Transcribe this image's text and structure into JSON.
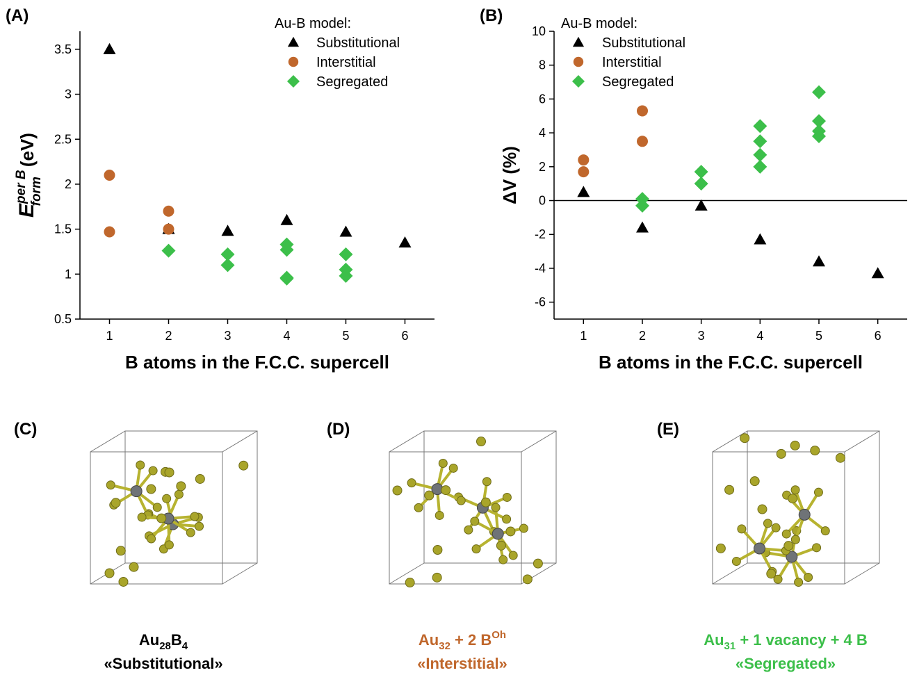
{
  "chart_data": [
    {
      "type": "scatter",
      "panel": "(A)",
      "legend_title": "Au-B model:",
      "legend": "upper right",
      "xlabel": "B atoms in the F.C.C. supercell",
      "ylabel": {
        "main": "E",
        "sup": "per B",
        "sub": "form",
        "unit": "(eV)"
      },
      "xlim": [
        0.5,
        6.5
      ],
      "ylim": [
        0.5,
        3.7
      ],
      "xticks": [
        1,
        2,
        3,
        4,
        5,
        6
      ],
      "yticks": [
        0.5,
        1,
        1.5,
        2,
        2.5,
        3,
        3.5
      ],
      "series": [
        {
          "name": "Substitutional",
          "color": "#000000",
          "marker": "triangle",
          "x": [
            1,
            2,
            3,
            4,
            5,
            6
          ],
          "values": [
            3.5,
            1.5,
            1.48,
            1.6,
            1.47,
            1.35
          ]
        },
        {
          "name": "Interstitial",
          "color": "#c0672c",
          "marker": "circle",
          "x": [
            1,
            1,
            2,
            2
          ],
          "values": [
            2.1,
            1.47,
            1.7,
            1.5
          ]
        },
        {
          "name": "Segregated",
          "color": "#3cbf4a",
          "marker": "diamond",
          "x": [
            2,
            3,
            3,
            4,
            4,
            4,
            4,
            5,
            5,
            5
          ],
          "values": [
            1.26,
            1.22,
            1.1,
            1.33,
            1.27,
            0.96,
            0.95,
            1.22,
            1.05,
            0.98
          ]
        }
      ]
    },
    {
      "type": "scatter",
      "panel": "(B)",
      "legend_title": "Au-B model:",
      "legend": "upper left",
      "zero_line": true,
      "xlabel": "B atoms in the F.C.C. supercell",
      "ylabel": "ΔV (%)",
      "xlim": [
        0.5,
        6.5
      ],
      "ylim": [
        -7,
        10
      ],
      "xticks": [
        1,
        2,
        3,
        4,
        5,
        6
      ],
      "yticks": [
        -6,
        -4,
        -2,
        0,
        2,
        4,
        6,
        8,
        10
      ],
      "series": [
        {
          "name": "Substitutional",
          "color": "#000000",
          "marker": "triangle",
          "x": [
            1,
            2,
            3,
            4,
            5,
            6
          ],
          "values": [
            0.5,
            -1.6,
            -0.3,
            -2.3,
            -3.6,
            -4.3
          ]
        },
        {
          "name": "Interstitial",
          "color": "#c0672c",
          "marker": "circle",
          "x": [
            1,
            1,
            2,
            2
          ],
          "values": [
            2.4,
            1.7,
            5.3,
            3.5
          ]
        },
        {
          "name": "Segregated",
          "color": "#3cbf4a",
          "marker": "diamond",
          "x": [
            2,
            2,
            3,
            3,
            4,
            4,
            4,
            4,
            5,
            5,
            5,
            5
          ],
          "values": [
            0.1,
            -0.3,
            1.7,
            1.0,
            4.4,
            3.5,
            2.7,
            2.0,
            6.4,
            4.7,
            4.1,
            3.8
          ]
        }
      ]
    }
  ],
  "structures": [
    {
      "label": "(C)",
      "color": "#000000",
      "formula": [
        {
          "text": "Au"
        },
        {
          "text": "28",
          "sub": true
        },
        {
          "text": "B"
        },
        {
          "text": "4",
          "sub": true
        }
      ],
      "name": "«Substitutional»"
    },
    {
      "label": "(D)",
      "color": "#c0672c",
      "formula": [
        {
          "text": "Au"
        },
        {
          "text": "32",
          "sub": true
        },
        {
          "text": " + 2 B"
        },
        {
          "text": "Oh",
          "sup": true
        }
      ],
      "name": "«Interstitial»"
    },
    {
      "label": "(E)",
      "color": "#3cbf4a",
      "formula": [
        {
          "text": "Au"
        },
        {
          "text": "31",
          "sub": true
        },
        {
          "text": " + 1 vacancy + 4 B"
        }
      ],
      "name": "«Segregated»"
    }
  ]
}
